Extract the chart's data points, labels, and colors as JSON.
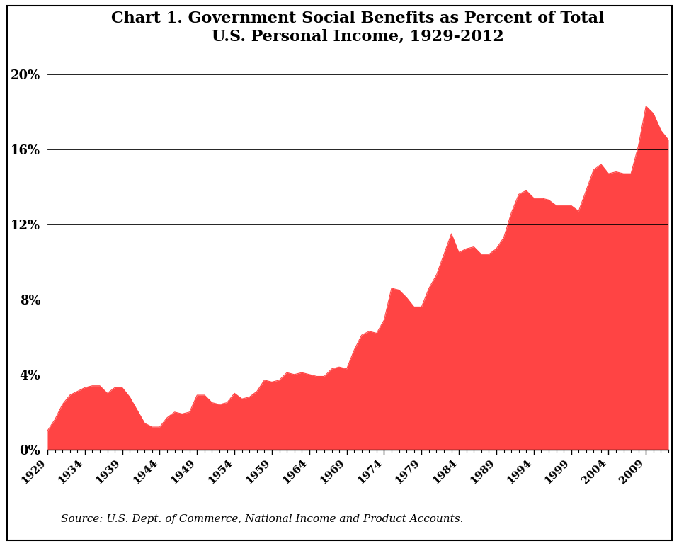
{
  "title": "Chart 1. Government Social Benefits as Percent of Total\nU.S. Personal Income, 1929-2012",
  "source_text": "Source: U.S. Dept. of Commerce, National Income and Product Accounts.",
  "fill_color": "#FF4444",
  "background_color": "#FFFFFF",
  "xlim": [
    1929,
    2012
  ],
  "ylim": [
    0,
    0.21
  ],
  "yticks": [
    0,
    0.04,
    0.08,
    0.12,
    0.16,
    0.2
  ],
  "ytick_labels": [
    "0%",
    "4%",
    "8%",
    "12%",
    "16%",
    "20%"
  ],
  "xticks": [
    1929,
    1934,
    1939,
    1944,
    1949,
    1954,
    1959,
    1964,
    1969,
    1974,
    1979,
    1984,
    1989,
    1994,
    1999,
    2004,
    2009
  ],
  "years": [
    1929,
    1930,
    1931,
    1932,
    1933,
    1934,
    1935,
    1936,
    1937,
    1938,
    1939,
    1940,
    1941,
    1942,
    1943,
    1944,
    1945,
    1946,
    1947,
    1948,
    1949,
    1950,
    1951,
    1952,
    1953,
    1954,
    1955,
    1956,
    1957,
    1958,
    1959,
    1960,
    1961,
    1962,
    1963,
    1964,
    1965,
    1966,
    1967,
    1968,
    1969,
    1970,
    1971,
    1972,
    1973,
    1974,
    1975,
    1976,
    1977,
    1978,
    1979,
    1980,
    1981,
    1982,
    1983,
    1984,
    1985,
    1986,
    1987,
    1988,
    1989,
    1990,
    1991,
    1992,
    1993,
    1994,
    1995,
    1996,
    1997,
    1998,
    1999,
    2000,
    2001,
    2002,
    2003,
    2004,
    2005,
    2006,
    2007,
    2008,
    2009,
    2010,
    2011,
    2012
  ],
  "values": [
    0.01,
    0.016,
    0.024,
    0.029,
    0.031,
    0.033,
    0.034,
    0.034,
    0.03,
    0.033,
    0.033,
    0.028,
    0.021,
    0.014,
    0.012,
    0.012,
    0.017,
    0.02,
    0.019,
    0.02,
    0.029,
    0.029,
    0.025,
    0.024,
    0.025,
    0.03,
    0.027,
    0.028,
    0.031,
    0.037,
    0.036,
    0.037,
    0.041,
    0.04,
    0.041,
    0.04,
    0.039,
    0.039,
    0.043,
    0.044,
    0.043,
    0.053,
    0.061,
    0.063,
    0.062,
    0.069,
    0.086,
    0.085,
    0.081,
    0.076,
    0.076,
    0.086,
    0.093,
    0.104,
    0.115,
    0.105,
    0.107,
    0.108,
    0.104,
    0.104,
    0.107,
    0.113,
    0.126,
    0.136,
    0.138,
    0.134,
    0.134,
    0.133,
    0.13,
    0.13,
    0.13,
    0.127,
    0.138,
    0.149,
    0.152,
    0.147,
    0.148,
    0.147,
    0.147,
    0.162,
    0.183,
    0.179,
    0.17,
    0.165
  ]
}
